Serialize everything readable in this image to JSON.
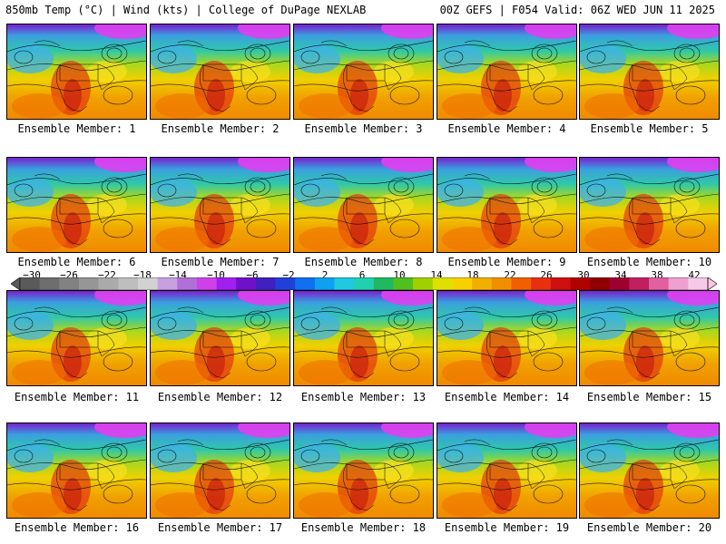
{
  "header": {
    "left": "850mb Temp (°C) | Wind (kts) | College of DuPage NEXLAB",
    "right": "00Z GEFS | F054 Valid: 06Z WED JUN 11 2025"
  },
  "members": [
    "Ensemble Member: 1",
    "Ensemble Member: 2",
    "Ensemble Member: 3",
    "Ensemble Member: 4",
    "Ensemble Member: 5",
    "Ensemble Member: 6",
    "Ensemble Member: 7",
    "Ensemble Member: 8",
    "Ensemble Member: 9",
    "Ensemble Member: 10",
    "Ensemble Member: 11",
    "Ensemble Member: 12",
    "Ensemble Member: 13",
    "Ensemble Member: 14",
    "Ensemble Member: 15",
    "Ensemble Member: 16",
    "Ensemble Member: 17",
    "Ensemble Member: 18",
    "Ensemble Member: 19",
    "Ensemble Member: 20"
  ],
  "colorbar": {
    "ticks": [
      "−30",
      "−26",
      "−22",
      "−18",
      "−14",
      "−10",
      "−6",
      "−2",
      "2",
      "6",
      "10",
      "14",
      "18",
      "22",
      "26",
      "30",
      "34",
      "38",
      "42"
    ],
    "colors": [
      "#5a5a5a",
      "#6e6e6e",
      "#828282",
      "#969696",
      "#aaaaaa",
      "#bebebe",
      "#d2d2d2",
      "#c8a0e0",
      "#b070d8",
      "#d040e8",
      "#a020f0",
      "#7010c8",
      "#4020c0",
      "#2040d8",
      "#1070f0",
      "#10a0f0",
      "#20c8e0",
      "#20d0b0",
      "#20b860",
      "#50c020",
      "#a0d000",
      "#e0e000",
      "#f8d000",
      "#f0b000",
      "#f09000",
      "#f06000",
      "#e83010",
      "#d01010",
      "#b00000",
      "#900000",
      "#a00030",
      "#c02060",
      "#e060a0",
      "#f0a0d0",
      "#f8c8e8"
    ]
  }
}
